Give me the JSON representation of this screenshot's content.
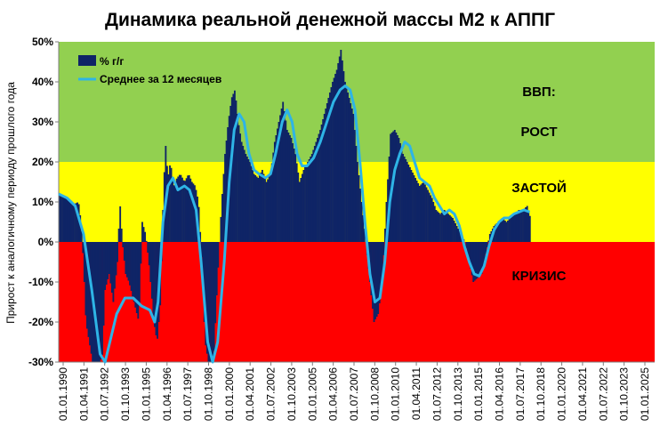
{
  "chart_data": {
    "type": "bar",
    "title": "Динамика реальной денежной массы М2 к АППГ",
    "ylabel": "Прирост к аналогичному периоду прошлого года",
    "xlabel": "",
    "ylim": [
      -30,
      50
    ],
    "y_ticks": [
      "-30%",
      "-20%",
      "-10%",
      "0%",
      "10%",
      "20%",
      "30%",
      "40%",
      "50%"
    ],
    "y_tick_values": [
      -30,
      -20,
      -10,
      0,
      10,
      20,
      30,
      40,
      50
    ],
    "x_tick_labels": [
      "01.01.1990",
      "01.04.1991",
      "01.07.1992",
      "01.10.1993",
      "01.01.1995",
      "01.04.1996",
      "01.07.1997",
      "01.10.1998",
      "01.01.2000",
      "01.04.2001",
      "01.07.2002",
      "01.10.2003",
      "01.01.2005",
      "01.04.2006",
      "01.07.2007",
      "01.10.2008",
      "01.01.2010",
      "01.04.2011",
      "01.07.2012",
      "01.10.2013",
      "01.01.2015",
      "01.04.2016",
      "01.07.2017",
      "01.10.2018",
      "01.01.2020",
      "01.04.2021",
      "01.07.2022",
      "01.10.2023",
      "01.01.2025"
    ],
    "x_range_years": [
      1990.0,
      2026.0
    ],
    "grid": false,
    "legend_position": "top-left",
    "zones": [
      {
        "label": "ВВП:",
        "label2": "РОСТ",
        "from": 20,
        "to": 50,
        "color": "#92d050"
      },
      {
        "label": "ЗАСТОЙ",
        "from": 0,
        "to": 20,
        "color": "#ffff00"
      },
      {
        "label": "КРИЗИС",
        "from": -30,
        "to": 0,
        "color": "#ff0000"
      }
    ],
    "series": [
      {
        "name": "% г/г",
        "kind": "bar",
        "color": "#0f2466",
        "points": [
          [
            1990.0,
            12
          ],
          [
            1990.3,
            11
          ],
          [
            1990.6,
            10.5
          ],
          [
            1990.9,
            9.5
          ],
          [
            1991.15,
            10
          ],
          [
            1991.3,
            5
          ],
          [
            1991.45,
            -5
          ],
          [
            1991.6,
            -20
          ],
          [
            1991.8,
            -25
          ],
          [
            1992.0,
            -30
          ],
          [
            1992.2,
            -30
          ],
          [
            1992.45,
            -30
          ],
          [
            1992.6,
            -28
          ],
          [
            1992.75,
            -12
          ],
          [
            1993.0,
            -8
          ],
          [
            1993.25,
            -15
          ],
          [
            1993.5,
            -5
          ],
          [
            1993.65,
            10
          ],
          [
            1993.8,
            0
          ],
          [
            1994.0,
            -8
          ],
          [
            1994.2,
            -10
          ],
          [
            1994.5,
            -15
          ],
          [
            1994.8,
            -20
          ],
          [
            1995.0,
            5
          ],
          [
            1995.2,
            2
          ],
          [
            1995.4,
            -5
          ],
          [
            1995.7,
            -20
          ],
          [
            1995.9,
            -25
          ],
          [
            1996.1,
            -15
          ],
          [
            1996.25,
            8
          ],
          [
            1996.4,
            25
          ],
          [
            1996.55,
            16
          ],
          [
            1996.7,
            20
          ],
          [
            1996.9,
            14
          ],
          [
            1997.1,
            16
          ],
          [
            1997.3,
            17
          ],
          [
            1997.55,
            15
          ],
          [
            1997.8,
            17
          ],
          [
            1998.0,
            15
          ],
          [
            1998.2,
            14
          ],
          [
            1998.4,
            10
          ],
          [
            1998.6,
            -5
          ],
          [
            1998.8,
            -25
          ],
          [
            1999.0,
            -30
          ],
          [
            1999.3,
            -30
          ],
          [
            1999.6,
            -5
          ],
          [
            1999.8,
            10
          ],
          [
            2000.0,
            22
          ],
          [
            2000.2,
            30
          ],
          [
            2000.4,
            36
          ],
          [
            2000.6,
            38
          ],
          [
            2000.8,
            30
          ],
          [
            2001.0,
            25
          ],
          [
            2001.25,
            22
          ],
          [
            2001.5,
            20
          ],
          [
            2001.75,
            17
          ],
          [
            2002.0,
            16
          ],
          [
            2002.25,
            18
          ],
          [
            2002.5,
            15
          ],
          [
            2002.75,
            17
          ],
          [
            2003.0,
            25
          ],
          [
            2003.25,
            30
          ],
          [
            2003.5,
            35
          ],
          [
            2003.75,
            28
          ],
          [
            2004.0,
            26
          ],
          [
            2004.25,
            22
          ],
          [
            2004.5,
            15
          ],
          [
            2004.75,
            18
          ],
          [
            2005.0,
            20
          ],
          [
            2005.25,
            22
          ],
          [
            2005.5,
            25
          ],
          [
            2005.75,
            28
          ],
          [
            2006.0,
            32
          ],
          [
            2006.25,
            36
          ],
          [
            2006.5,
            40
          ],
          [
            2006.75,
            43
          ],
          [
            2007.0,
            48
          ],
          [
            2007.25,
            40
          ],
          [
            2007.5,
            36
          ],
          [
            2007.75,
            32
          ],
          [
            2008.0,
            20
          ],
          [
            2008.25,
            10
          ],
          [
            2008.5,
            0
          ],
          [
            2008.75,
            -10
          ],
          [
            2009.0,
            -20
          ],
          [
            2009.25,
            -18
          ],
          [
            2009.5,
            -10
          ],
          [
            2009.75,
            10
          ],
          [
            2010.0,
            27
          ],
          [
            2010.25,
            28
          ],
          [
            2010.5,
            26
          ],
          [
            2010.75,
            22
          ],
          [
            2011.0,
            20
          ],
          [
            2011.25,
            18
          ],
          [
            2011.5,
            16
          ],
          [
            2011.75,
            14
          ],
          [
            2012.0,
            15
          ],
          [
            2012.25,
            13
          ],
          [
            2012.5,
            11
          ],
          [
            2012.75,
            8
          ],
          [
            2013.0,
            7
          ],
          [
            2013.25,
            8
          ],
          [
            2013.5,
            7
          ],
          [
            2013.75,
            6
          ],
          [
            2014.0,
            4
          ],
          [
            2014.25,
            2
          ],
          [
            2014.5,
            0
          ],
          [
            2014.75,
            -5
          ],
          [
            2015.0,
            -10
          ],
          [
            2015.25,
            -9
          ],
          [
            2015.5,
            -8
          ],
          [
            2015.75,
            -3
          ],
          [
            2016.0,
            2
          ],
          [
            2016.25,
            4
          ],
          [
            2016.5,
            5
          ],
          [
            2016.75,
            6
          ],
          [
            2017.0,
            5
          ],
          [
            2017.25,
            6
          ],
          [
            2017.5,
            7
          ],
          [
            2017.75,
            8
          ],
          [
            2018.0,
            8
          ],
          [
            2018.25,
            9
          ],
          [
            2018.45,
            6
          ]
        ]
      },
      {
        "name": "Среднее за 12 месяцев",
        "kind": "line",
        "color": "#2eb4e6",
        "points": [
          [
            1990.0,
            12
          ],
          [
            1990.5,
            11
          ],
          [
            1991.0,
            9
          ],
          [
            1991.5,
            2
          ],
          [
            1992.0,
            -12
          ],
          [
            1992.5,
            -28
          ],
          [
            1992.8,
            -30
          ],
          [
            1993.5,
            -18
          ],
          [
            1994.0,
            -14
          ],
          [
            1994.5,
            -14
          ],
          [
            1995.0,
            -16
          ],
          [
            1995.5,
            -17
          ],
          [
            1995.8,
            -20
          ],
          [
            1996.0,
            -15
          ],
          [
            1996.3,
            5
          ],
          [
            1996.6,
            14
          ],
          [
            1996.9,
            16
          ],
          [
            1997.2,
            13
          ],
          [
            1997.6,
            14
          ],
          [
            1997.9,
            13
          ],
          [
            1998.3,
            8
          ],
          [
            1998.6,
            -5
          ],
          [
            1999.0,
            -25
          ],
          [
            1999.3,
            -30
          ],
          [
            1999.6,
            -25
          ],
          [
            2000.0,
            -5
          ],
          [
            2000.3,
            15
          ],
          [
            2000.6,
            28
          ],
          [
            2000.9,
            32
          ],
          [
            2001.2,
            30
          ],
          [
            2001.5,
            22
          ],
          [
            2001.8,
            18
          ],
          [
            2002.1,
            17
          ],
          [
            2002.5,
            16
          ],
          [
            2002.8,
            17
          ],
          [
            2003.1,
            22
          ],
          [
            2003.5,
            30
          ],
          [
            2003.8,
            33
          ],
          [
            2004.1,
            30
          ],
          [
            2004.4,
            22
          ],
          [
            2004.7,
            19
          ],
          [
            2005.0,
            19
          ],
          [
            2005.4,
            21
          ],
          [
            2005.8,
            25
          ],
          [
            2006.2,
            30
          ],
          [
            2006.6,
            35
          ],
          [
            2007.0,
            38
          ],
          [
            2007.3,
            39
          ],
          [
            2007.6,
            38
          ],
          [
            2007.9,
            33
          ],
          [
            2008.2,
            20
          ],
          [
            2008.5,
            5
          ],
          [
            2008.8,
            -8
          ],
          [
            2009.1,
            -15
          ],
          [
            2009.4,
            -14
          ],
          [
            2009.7,
            -5
          ],
          [
            2010.0,
            10
          ],
          [
            2010.3,
            18
          ],
          [
            2010.6,
            22
          ],
          [
            2010.9,
            25
          ],
          [
            2011.2,
            24
          ],
          [
            2011.5,
            20
          ],
          [
            2011.8,
            16
          ],
          [
            2012.1,
            15
          ],
          [
            2012.4,
            14
          ],
          [
            2012.7,
            11
          ],
          [
            2013.0,
            9
          ],
          [
            2013.3,
            7
          ],
          [
            2013.6,
            8
          ],
          [
            2013.9,
            7
          ],
          [
            2014.2,
            4
          ],
          [
            2014.5,
            -1
          ],
          [
            2014.8,
            -5
          ],
          [
            2015.1,
            -8
          ],
          [
            2015.4,
            -8.5
          ],
          [
            2015.7,
            -6
          ],
          [
            2016.0,
            -1
          ],
          [
            2016.3,
            3
          ],
          [
            2016.6,
            5
          ],
          [
            2016.9,
            6
          ],
          [
            2017.2,
            6
          ],
          [
            2017.5,
            7
          ],
          [
            2017.8,
            7.5
          ],
          [
            2018.1,
            8
          ],
          [
            2018.45,
            7.5
          ]
        ]
      }
    ]
  }
}
